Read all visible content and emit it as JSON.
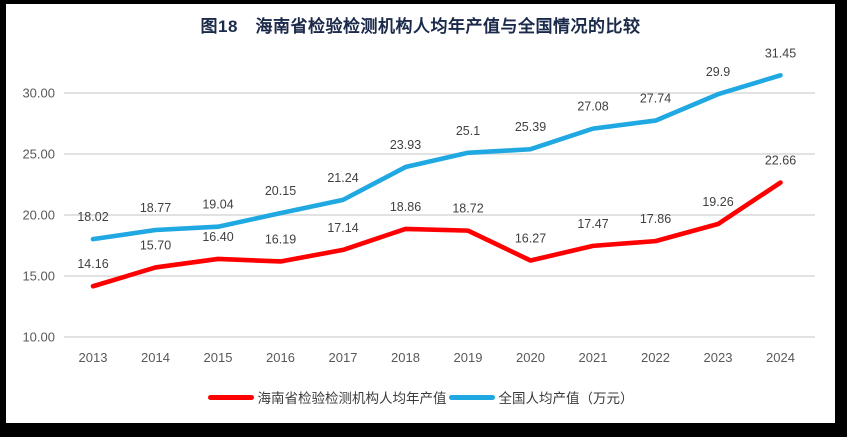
{
  "title": "图18　海南省检验检测机构人均年产值与全国情况的比较",
  "colors": {
    "hainan_line": "#ff0000",
    "national_line": "#1fa8e1",
    "gridline": "#d9d9d9",
    "axis_text": "#595959",
    "data_label_text": "#404040",
    "title_text": "#1b2a4a",
    "frame": "#000000"
  },
  "chart_data": {
    "type": "line",
    "categories": [
      "2013",
      "2014",
      "2015",
      "2016",
      "2017",
      "2018",
      "2019",
      "2020",
      "2021",
      "2022",
      "2023",
      "2024"
    ],
    "series": [
      {
        "name": "海南省检验检测机构人均年产值",
        "color": "#ff0000",
        "values": [
          14.16,
          15.7,
          16.4,
          16.19,
          17.14,
          18.86,
          18.72,
          16.27,
          17.47,
          17.86,
          19.26,
          22.66
        ],
        "labels": [
          "14.16",
          "15.70",
          "16.40",
          "16.19",
          "17.14",
          "18.86",
          "18.72",
          "16.27",
          "17.47",
          "17.86",
          "19.26",
          "22.66"
        ]
      },
      {
        "name": "全国人均产值（万元）",
        "color": "#1fa8e1",
        "values": [
          18.02,
          18.77,
          19.04,
          20.15,
          21.24,
          23.93,
          25.1,
          25.39,
          27.08,
          27.74,
          29.9,
          31.45
        ],
        "labels": [
          "18.02",
          "18.77",
          "19.04",
          "20.15",
          "21.24",
          "23.93",
          "25.1",
          "25.39",
          "27.08",
          "27.74",
          "29.9",
          "31.45"
        ]
      }
    ],
    "title": "图18　海南省检验检测机构人均年产值与全国情况的比较",
    "xlabel": "",
    "ylabel": "",
    "ylim": [
      10,
      32.5
    ],
    "yticks": {
      "values": [
        10,
        15,
        20,
        25,
        30
      ],
      "labels": [
        "10.00",
        "15.00",
        "20.00",
        "25.00",
        "30.00"
      ]
    },
    "grid": true,
    "legend_position": "bottom"
  }
}
